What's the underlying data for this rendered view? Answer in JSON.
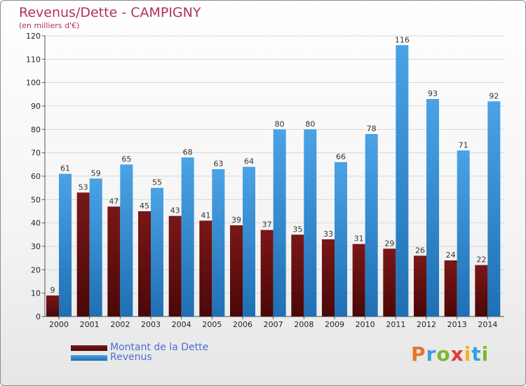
{
  "header": {
    "title": "Revenus/Dette - CAMPIGNY",
    "subtitle": "(en milliers d'€)"
  },
  "legend": {
    "debt_label": "Montant de la Dette",
    "revenue_label": "Revenus"
  },
  "brand": {
    "letters": [
      "P",
      "r",
      "o",
      "x",
      "i",
      "t",
      "i"
    ],
    "colors": [
      "#e8732a",
      "#3aa0dc",
      "#7cb82f",
      "#e23a3a",
      "#f2b41c",
      "#3aa0dc",
      "#7cb82f"
    ]
  },
  "colors": {
    "debt": "#7a1717",
    "debt_dark": "#4a0808",
    "revenue": "#4aa3e6",
    "revenue_dark": "#1f6fb4",
    "grid": "#d8d8d8"
  },
  "chart_data": {
    "type": "bar",
    "title": "Revenus/Dette - CAMPIGNY",
    "ylabel": "(en milliers d'€)",
    "xlabel": "",
    "categories": [
      "2000",
      "2001",
      "2002",
      "2003",
      "2004",
      "2005",
      "2006",
      "2007",
      "2008",
      "2009",
      "2010",
      "2011",
      "2012",
      "2013",
      "2014"
    ],
    "series": [
      {
        "name": "Montant de la Dette",
        "values": [
          9,
          53,
          47,
          45,
          43,
          41,
          39,
          37,
          35,
          33,
          31,
          29,
          26,
          24,
          22
        ]
      },
      {
        "name": "Revenus",
        "values": [
          61,
          59,
          65,
          55,
          68,
          63,
          64,
          80,
          80,
          66,
          78,
          116,
          93,
          71,
          92
        ]
      }
    ],
    "ylim": [
      0,
      120
    ],
    "yticks": [
      0,
      10,
      20,
      30,
      40,
      50,
      60,
      70,
      80,
      90,
      100,
      110,
      120
    ],
    "grid": true,
    "legend_position": "bottom-left"
  }
}
